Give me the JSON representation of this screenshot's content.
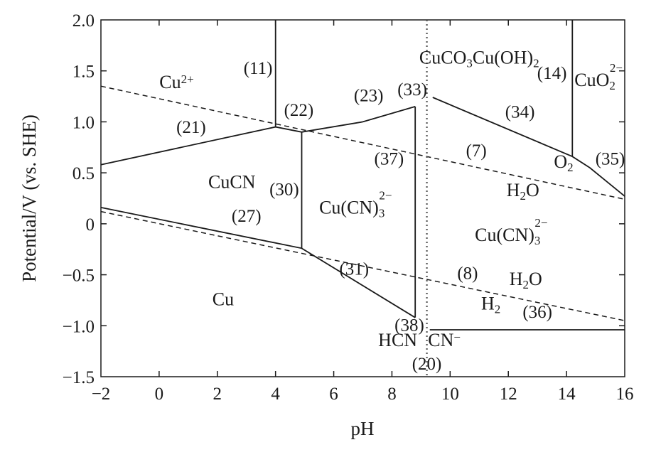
{
  "chart_data": {
    "type": "line",
    "xlabel": "pH",
    "ylabel": "Potential/V (vs. SHE)",
    "xlim": [
      -2,
      16
    ],
    "ylim": [
      -1.5,
      2.0
    ],
    "x_ticks": [
      {
        "value": -2,
        "label": "−2"
      },
      {
        "value": 0,
        "label": "0"
      },
      {
        "value": 2,
        "label": "2"
      },
      {
        "value": 4,
        "label": "4"
      },
      {
        "value": 6,
        "label": "6"
      },
      {
        "value": 8,
        "label": "8"
      },
      {
        "value": 10,
        "label": "10"
      },
      {
        "value": 12,
        "label": "12"
      },
      {
        "value": 14,
        "label": "14"
      },
      {
        "value": 16,
        "label": "16"
      }
    ],
    "y_ticks": [
      {
        "value": 2.0,
        "label": "2.0"
      },
      {
        "value": 1.5,
        "label": "1.5"
      },
      {
        "value": 1.0,
        "label": "1.0"
      },
      {
        "value": 0.5,
        "label": "0.5"
      },
      {
        "value": 0.0,
        "label": "0"
      },
      {
        "value": -0.5,
        "label": "−0.5"
      },
      {
        "value": -1.0,
        "label": "−1.0"
      },
      {
        "value": -1.5,
        "label": "−1.5"
      }
    ],
    "grid": false,
    "legend": "none",
    "series": [
      {
        "style": "solid",
        "points": [
          [
            -2,
            0.58
          ],
          [
            4.0,
            0.95
          ],
          [
            4.9,
            0.9
          ],
          [
            7.0,
            1.0
          ],
          [
            8.8,
            1.15
          ]
        ]
      },
      {
        "style": "solid",
        "points": [
          [
            9.4,
            1.24
          ],
          [
            14.2,
            0.66
          ],
          [
            14.8,
            0.55
          ],
          [
            16,
            0.27
          ]
        ]
      },
      {
        "style": "solid",
        "points": [
          [
            -2,
            0.16
          ],
          [
            4.9,
            -0.24
          ],
          [
            8.8,
            -0.92
          ]
        ]
      },
      {
        "style": "solid",
        "points": [
          [
            4.0,
            0.95
          ],
          [
            4.0,
            2.0
          ]
        ]
      },
      {
        "style": "solid",
        "points": [
          [
            14.2,
            0.66
          ],
          [
            14.2,
            2.0
          ]
        ]
      },
      {
        "style": "solid",
        "points": [
          [
            4.9,
            0.9
          ],
          [
            4.9,
            -0.24
          ]
        ]
      },
      {
        "style": "solid",
        "points": [
          [
            8.8,
            1.15
          ],
          [
            8.8,
            -0.92
          ]
        ]
      },
      {
        "style": "solid",
        "points": [
          [
            9.3,
            -1.04
          ],
          [
            16,
            -1.04
          ]
        ]
      },
      {
        "style": "dashed",
        "points": [
          [
            -2,
            1.35
          ],
          [
            16,
            0.24
          ]
        ]
      },
      {
        "style": "dashed",
        "points": [
          [
            -2,
            0.12
          ],
          [
            16,
            -0.95
          ]
        ]
      },
      {
        "style": "dotted",
        "points": [
          [
            9.2,
            2.0
          ],
          [
            9.2,
            -1.5
          ]
        ]
      }
    ],
    "region_labels": [
      {
        "id": "cu2plus",
        "base": "Cu",
        "sup": "2+",
        "x": 0.6,
        "y": 1.33
      },
      {
        "id": "cuco3",
        "parts": [
          "CuCO",
          "3",
          "Cu(OH)",
          "2"
        ],
        "x": 11.0,
        "y": 1.57
      },
      {
        "id": "cuo2",
        "base": "CuO",
        "sub": "2",
        "sup": "2−",
        "x": 15.1,
        "y": 1.35
      },
      {
        "id": "cucn",
        "text": "CuCN",
        "x": 2.5,
        "y": 0.35
      },
      {
        "id": "cucn3_left",
        "base": "Cu(CN)",
        "sub": "3",
        "sup": "2−",
        "x": 6.75,
        "y": 0.1
      },
      {
        "id": "cucn3_right",
        "base": "Cu(CN)",
        "sub": "3",
        "sup": "2−",
        "x": 12.1,
        "y": -0.17
      },
      {
        "id": "o2",
        "base": "O",
        "sub": "2",
        "x": 13.9,
        "y": 0.55
      },
      {
        "id": "h2o_upper",
        "base": "H",
        "sub": "2",
        "tail": "O",
        "x": 12.5,
        "y": 0.27
      },
      {
        "id": "h2o_lower",
        "base": "H",
        "sub": "2",
        "tail": "O",
        "x": 12.6,
        "y": -0.6
      },
      {
        "id": "h2",
        "base": "H",
        "sub": "2",
        "x": 11.4,
        "y": -0.84
      },
      {
        "id": "cu",
        "text": "Cu",
        "x": 2.2,
        "y": -0.8
      },
      {
        "id": "hcn",
        "text": "HCN",
        "x": 8.2,
        "y": -1.2
      },
      {
        "id": "cnminus",
        "base": "CN",
        "sup": "−",
        "x": 9.8,
        "y": -1.2
      }
    ],
    "annotations": [
      {
        "text": "(11)",
        "x": 3.4,
        "y": 1.47
      },
      {
        "text": "(14)",
        "x": 13.5,
        "y": 1.42
      },
      {
        "text": "(21)",
        "x": 1.1,
        "y": 0.89
      },
      {
        "text": "(22)",
        "x": 4.8,
        "y": 1.06
      },
      {
        "text": "(23)",
        "x": 7.2,
        "y": 1.2
      },
      {
        "text": "(33)",
        "x": 8.7,
        "y": 1.26
      },
      {
        "text": "(34)",
        "x": 12.4,
        "y": 1.04
      },
      {
        "text": "(7)",
        "x": 10.9,
        "y": 0.66
      },
      {
        "text": "(35)",
        "x": 15.5,
        "y": 0.58
      },
      {
        "text": "(30)",
        "x": 4.3,
        "y": 0.28
      },
      {
        "text": "(37)",
        "x": 7.9,
        "y": 0.58
      },
      {
        "text": "(27)",
        "x": 3.0,
        "y": 0.02
      },
      {
        "text": "(31)",
        "x": 6.7,
        "y": -0.5
      },
      {
        "text": "(8)",
        "x": 10.6,
        "y": -0.54
      },
      {
        "text": "(36)",
        "x": 13.0,
        "y": -0.92
      },
      {
        "text": "(38)",
        "x": 8.6,
        "y": -1.05
      },
      {
        "text": "(20)",
        "x": 9.2,
        "y": -1.43
      }
    ]
  }
}
